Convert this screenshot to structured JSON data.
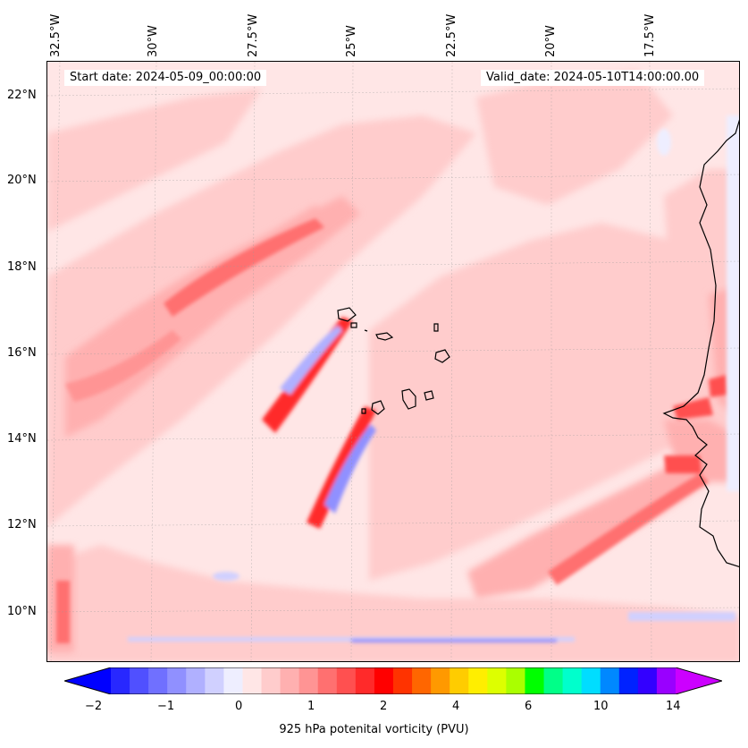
{
  "map": {
    "start_date": "Start date: 2024-05-09_00:00:00",
    "valid_date": "Valid_date: 2024-05-10T14:00:00.00",
    "lon_labels": [
      "32.5°W",
      "30°W",
      "27.5°W",
      "25°W",
      "22.5°W",
      "20°W",
      "17.5°W"
    ],
    "lat_labels": [
      "22°N",
      "20°N",
      "18°N",
      "16°N",
      "14°N",
      "12°N",
      "10°N"
    ]
  },
  "colorbar": {
    "title": "925 hPa potenital vorticity (PVU)",
    "tick_labels": [
      "−2",
      "−1",
      "0",
      "1",
      "2",
      "4",
      "6",
      "10",
      "14"
    ],
    "colors": [
      "#0000ff",
      "#2828ff",
      "#5050ff",
      "#7070ff",
      "#9090ff",
      "#b0b0ff",
      "#d0d0ff",
      "#eeeeff",
      "#ffe6e6",
      "#ffcccc",
      "#ffb0b0",
      "#ff9494",
      "#ff7070",
      "#ff5050",
      "#ff2a2a",
      "#ff0000",
      "#ff3300",
      "#ff6600",
      "#ff9900",
      "#ffcc00",
      "#ffee00",
      "#ddff00",
      "#aaff00",
      "#00ff00",
      "#00ff88",
      "#00ffcc",
      "#00ddff",
      "#0088ff",
      "#0022ff",
      "#3300ff",
      "#9900ff",
      "#cc00ff"
    ]
  }
}
